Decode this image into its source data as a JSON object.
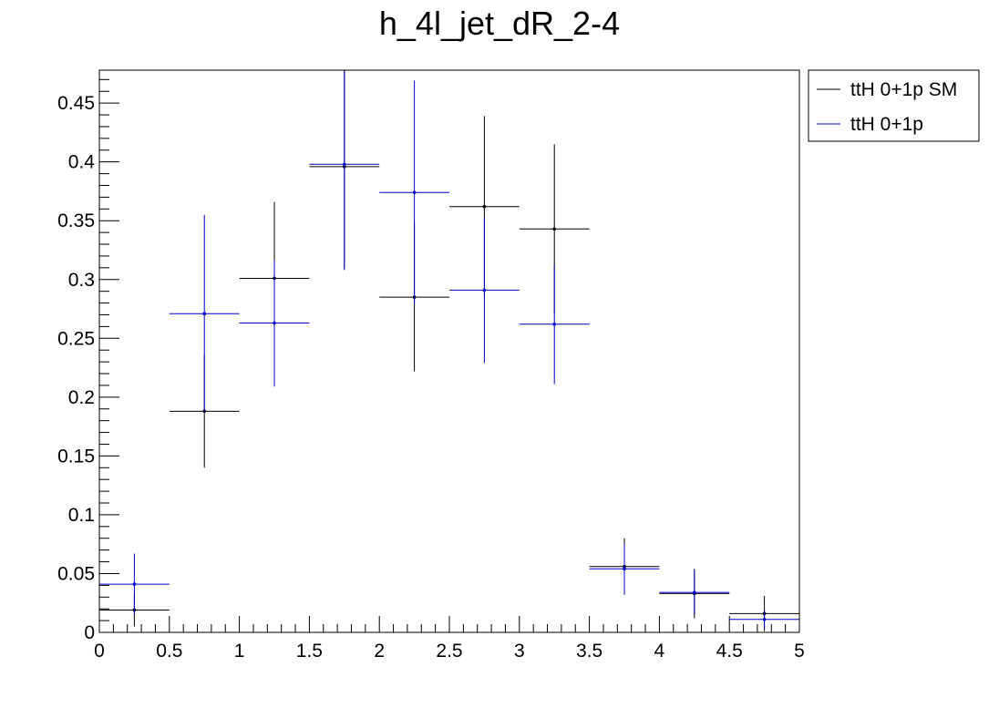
{
  "chart_data": {
    "type": "scatter",
    "title": "h_4l_jet_dR_2-4",
    "xlabel": "",
    "ylabel": "",
    "xlim": [
      0,
      5
    ],
    "ylim": [
      0,
      0.478
    ],
    "x_ticks": [
      "0",
      "0.5",
      "1",
      "1.5",
      "2",
      "2.5",
      "3",
      "3.5",
      "4",
      "4.5",
      "5"
    ],
    "y_ticks": [
      "0",
      "0.05",
      "0.1",
      "0.15",
      "0.2",
      "0.25",
      "0.3",
      "0.35",
      "0.4",
      "0.45"
    ],
    "grid": false,
    "legend_position": "top-right-outside",
    "bin_edges": [
      0,
      0.5,
      1,
      1.5,
      2,
      2.5,
      3,
      3.5,
      4,
      4.5,
      5
    ],
    "series": [
      {
        "name": "ttH 0+1p SM",
        "color": "#000000",
        "x": [
          0.25,
          0.75,
          1.25,
          1.75,
          2.25,
          2.75,
          3.25,
          3.75,
          4.25,
          4.75
        ],
        "y": [
          0.019,
          0.188,
          0.301,
          0.396,
          0.285,
          0.362,
          0.343,
          0.056,
          0.033,
          0.016
        ],
        "yerr": [
          0.014,
          0.048,
          0.065,
          0.087,
          0.063,
          0.077,
          0.072,
          0.024,
          0.021,
          0.015
        ]
      },
      {
        "name": "ttH 0+1p",
        "color": "#0000cc",
        "x": [
          0.25,
          0.75,
          1.25,
          1.75,
          2.25,
          2.75,
          3.25,
          3.75,
          4.25,
          4.75
        ],
        "y": [
          0.041,
          0.271,
          0.263,
          0.398,
          0.374,
          0.291,
          0.262,
          0.054,
          0.034,
          0.011
        ],
        "yerr": [
          0.026,
          0.084,
          0.054,
          0.09,
          0.095,
          0.062,
          0.051,
          0.022,
          0.019,
          0.008
        ]
      }
    ]
  }
}
